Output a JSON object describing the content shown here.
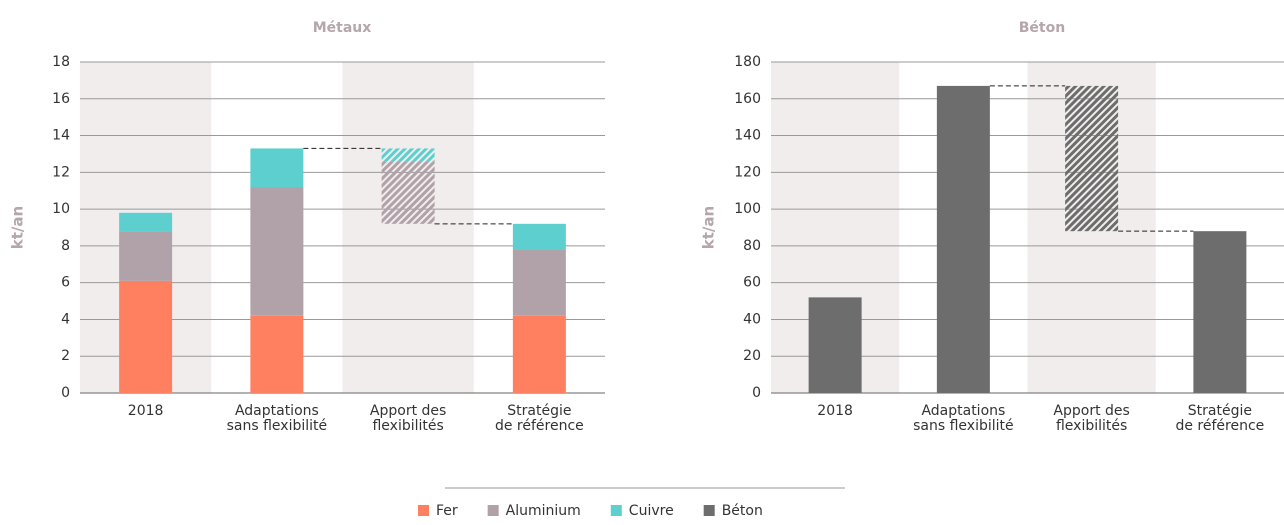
{
  "chart_data": [
    {
      "type": "waterfall",
      "title": "Métaux",
      "ylabel": "kt/an",
      "categories": [
        [
          "2018"
        ],
        [
          "Adaptations",
          "sans flexibilité"
        ],
        [
          "Apport des",
          "flexibilités"
        ],
        [
          "Stratégie",
          "de référence"
        ]
      ],
      "series": [
        {
          "name": "Fer",
          "color": "#ff7f61",
          "values": [
            6.1,
            4.2,
            0,
            4.2
          ]
        },
        {
          "name": "Aluminium",
          "color": "#b0a2a8",
          "values": [
            2.7,
            7.0,
            -3.4,
            3.6
          ]
        },
        {
          "name": "Cuivre",
          "color": "#5ecfcf",
          "values": [
            1.0,
            2.1,
            -0.7,
            1.4
          ]
        }
      ],
      "ylim": [
        0,
        18
      ],
      "yticks": [
        0,
        2,
        4,
        6,
        8,
        10,
        12,
        14,
        16,
        18
      ],
      "grid": true
    },
    {
      "type": "waterfall",
      "title": "Béton",
      "ylabel": "kt/an",
      "categories": [
        [
          "2018"
        ],
        [
          "Adaptations",
          "sans flexibilité"
        ],
        [
          "Apport des",
          "flexibilités"
        ],
        [
          "Stratégie",
          "de référence"
        ]
      ],
      "series": [
        {
          "name": "Béton",
          "color": "#6d6d6d",
          "values": [
            52,
            167,
            -79,
            88
          ]
        }
      ],
      "ylim": [
        0,
        180
      ],
      "yticks": [
        0,
        20,
        40,
        60,
        80,
        100,
        120,
        140,
        160,
        180
      ],
      "grid": true
    }
  ]
}
